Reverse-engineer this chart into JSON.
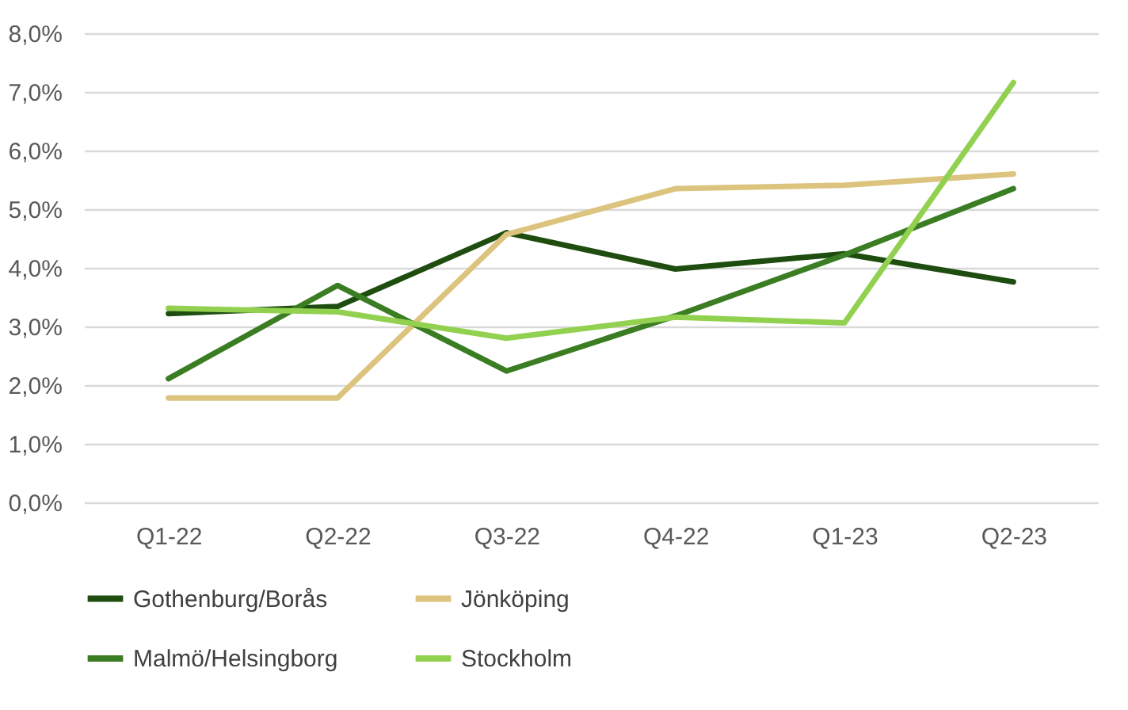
{
  "chart_data": {
    "type": "line",
    "categories": [
      "Q1-22",
      "Q2-22",
      "Q3-22",
      "Q4-22",
      "Q1-23",
      "Q2-23"
    ],
    "series": [
      {
        "name": "Gothenburg/Borås",
        "color": "#1e4d0f",
        "values": [
          3.22,
          3.34,
          4.6,
          3.98,
          4.24,
          3.76
        ]
      },
      {
        "name": "Jönköping",
        "color": "#dcc47e",
        "values": [
          1.78,
          1.78,
          4.57,
          5.35,
          5.41,
          5.6
        ]
      },
      {
        "name": "Malmö/Helsingborg",
        "color": "#3a7d22",
        "values": [
          2.11,
          3.7,
          2.24,
          3.18,
          4.22,
          5.35
        ]
      },
      {
        "name": "Stockholm",
        "color": "#92d050",
        "values": [
          3.31,
          3.25,
          2.8,
          3.16,
          3.06,
          7.16
        ]
      }
    ],
    "ylim": [
      0,
      8
    ],
    "yticks": [
      {
        "value": 0,
        "label": "0,0%"
      },
      {
        "value": 1,
        "label": "1,0%"
      },
      {
        "value": 2,
        "label": "2,0%"
      },
      {
        "value": 3,
        "label": "3,0%"
      },
      {
        "value": 4,
        "label": "4,0%"
      },
      {
        "value": 5,
        "label": "5,0%"
      },
      {
        "value": 6,
        "label": "6,0%"
      },
      {
        "value": 7,
        "label": "7,0%"
      },
      {
        "value": 8,
        "label": "8,0%"
      }
    ],
    "grid": "y",
    "legend": "bottom",
    "marker": "none",
    "line_style": "solid"
  }
}
